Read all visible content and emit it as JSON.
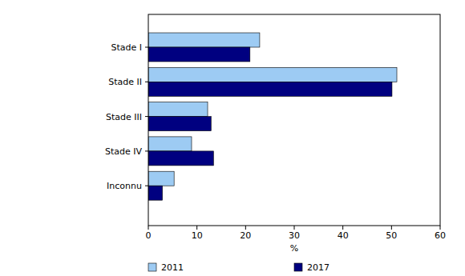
{
  "chart_data": {
    "type": "bar",
    "orientation": "horizontal",
    "categories": [
      "Stade I",
      "Stade II",
      "Stade III",
      "Stade IV",
      "Inconnu"
    ],
    "series": [
      {
        "name": "2011",
        "color": "#9dcbf3",
        "values": [
          22.9,
          51.1,
          12.2,
          8.9,
          5.3
        ]
      },
      {
        "name": "2017",
        "color": "#000080",
        "values": [
          20.9,
          50.1,
          12.9,
          13.4,
          2.9
        ]
      }
    ],
    "xlabel": "%",
    "xlim": [
      0,
      60
    ],
    "xticks": [
      0,
      10,
      20,
      30,
      40,
      50,
      60
    ],
    "grid": false,
    "legend": "bottom"
  }
}
